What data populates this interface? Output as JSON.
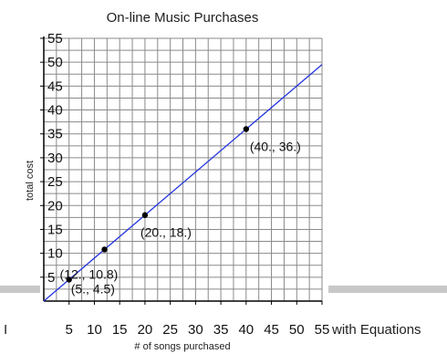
{
  "background": {
    "right_text": "with Equations",
    "left_fragment": "I",
    "bar_color": "#c8c8c8"
  },
  "chart_data": {
    "type": "scatter",
    "title": "On-line Music Purchases",
    "xlabel": "# of songs purchased",
    "ylabel": "total cost",
    "xlim": [
      0,
      55
    ],
    "ylim": [
      0,
      55
    ],
    "x_ticks": [
      "5",
      "10",
      "15",
      "20",
      "25",
      "30",
      "35",
      "40",
      "45",
      "50",
      "55"
    ],
    "y_ticks": [
      "5",
      "10",
      "15",
      "20",
      "25",
      "30",
      "35",
      "40",
      "45",
      "50",
      "55"
    ],
    "grid": true,
    "line": {
      "slope": 0.9,
      "intercept": 0,
      "color": "#2233dd"
    },
    "points": [
      {
        "x": 5,
        "y": 4.5,
        "label": "(5., 4.5)"
      },
      {
        "x": 12,
        "y": 10.8,
        "label": "(12., 10.8)"
      },
      {
        "x": 20,
        "y": 18,
        "label": "(20., 18.)"
      },
      {
        "x": 40,
        "y": 36,
        "label": "(40., 36.)"
      }
    ]
  }
}
